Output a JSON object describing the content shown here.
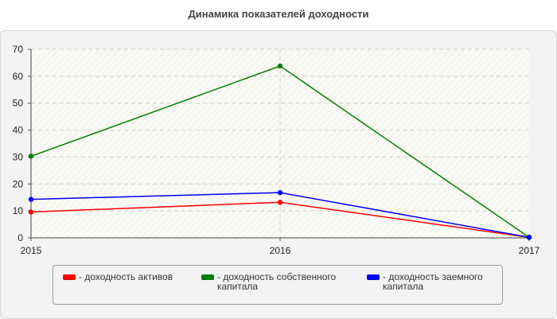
{
  "chart_data": {
    "type": "line",
    "title": "Динамика показателей доходности",
    "x": [
      "2015",
      "2016",
      "2017"
    ],
    "ylim": [
      0,
      70
    ],
    "yticks": [
      "0",
      "10",
      "20",
      "30",
      "40",
      "50",
      "60",
      "70"
    ],
    "grid": true,
    "legend_position": "bottom",
    "series": [
      {
        "name": "- доходность активов",
        "color": "#ff0000",
        "values": [
          9.6,
          13.2,
          0.2
        ]
      },
      {
        "name": "- доходность собственного капитала",
        "color": "#008000",
        "values": [
          30.3,
          63.8,
          0.2
        ]
      },
      {
        "name": "- доходность заемного капитала",
        "color": "#0000ff",
        "values": [
          14.3,
          16.8,
          0.2
        ]
      }
    ]
  }
}
